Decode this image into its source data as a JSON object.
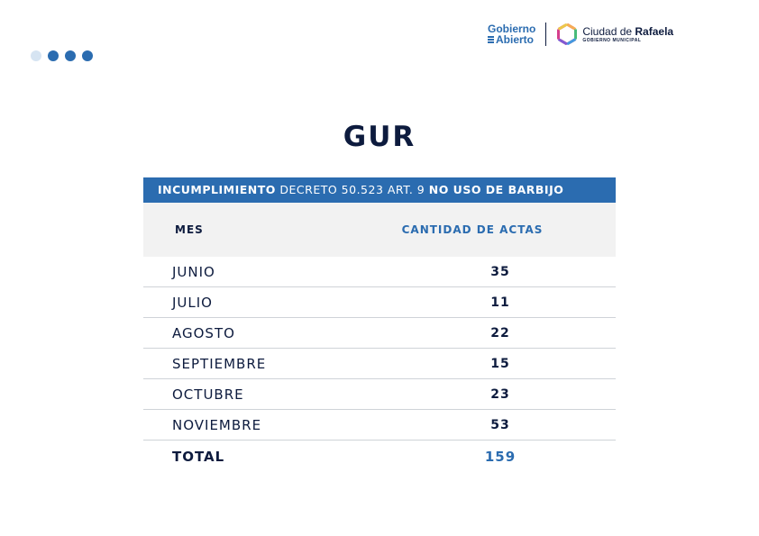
{
  "header": {
    "gobierno_abierto": {
      "line1": "Gobierno",
      "line2": "Abierto"
    },
    "ciudad": {
      "prefix": "Ciudad de ",
      "name": "Rafaela",
      "sub": "GOBIERNO MUNICIPAL"
    }
  },
  "title": "GUR",
  "banner": {
    "part1": "INCUMPLIMIENTO",
    "part2": " DECRETO 50.523 ART. 9 ",
    "part3": "NO USO DE BARBIJO"
  },
  "table": {
    "headers": {
      "mes": "MES",
      "cantidad": "CANTIDAD DE ACTAS"
    },
    "rows": [
      {
        "mes": "JUNIO",
        "cantidad": "35"
      },
      {
        "mes": "JULIO",
        "cantidad": "11"
      },
      {
        "mes": "AGOSTO",
        "cantidad": "22"
      },
      {
        "mes": "SEPTIEMBRE",
        "cantidad": "15"
      },
      {
        "mes": "OCTUBRE",
        "cantidad": "23"
      },
      {
        "mes": "NOVIEMBRE",
        "cantidad": "53"
      }
    ],
    "total": {
      "label": "TOTAL",
      "value": "159"
    }
  },
  "colors": {
    "accent": "#2b6cb0",
    "text": "#0d1b3e",
    "header_bg": "#f2f2f2"
  },
  "icons": {
    "logo_mark": "rafaela-hexagon-icon",
    "dots": "pagination-dots-icon"
  }
}
